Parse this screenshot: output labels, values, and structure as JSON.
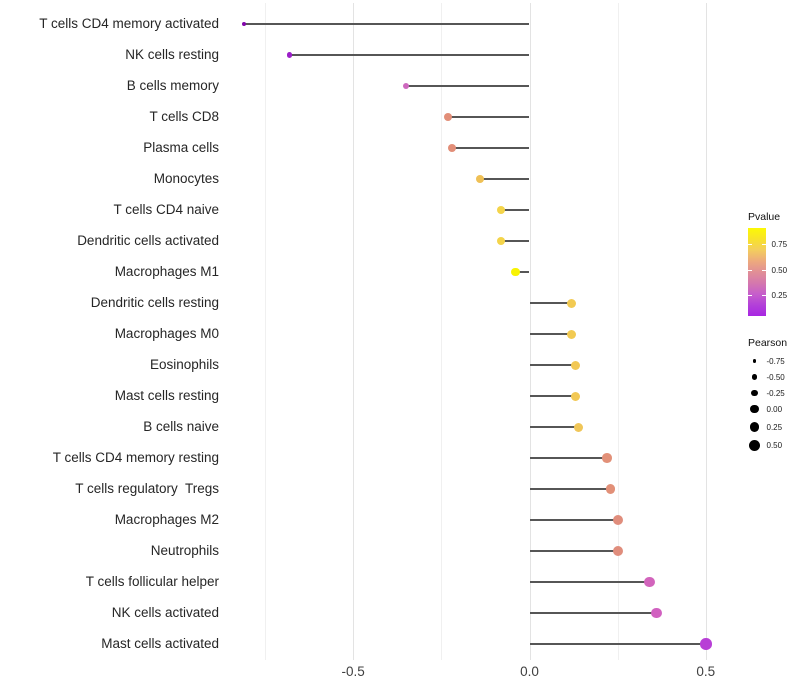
{
  "chart_data": {
    "type": "scatter",
    "variant": "lollipop",
    "title": "",
    "xlabel": "",
    "ylabel": "",
    "xlim": [
      -0.88,
      0.57
    ],
    "x_ticks": [
      "-0.5",
      "0.0",
      "0.5"
    ],
    "x_tick_values": [
      -0.5,
      0.0,
      0.5
    ],
    "grid_x_values": [
      -0.75,
      -0.5,
      -0.25,
      0.0,
      0.25,
      0.5
    ],
    "grid": "vertical-only",
    "legend_position": "right",
    "stick_color": "#565656",
    "points": [
      {
        "label": "T cells CD4 memory activated",
        "pearson": -0.81,
        "color": "#8207aa",
        "size": 4.0
      },
      {
        "label": "NK cells resting",
        "pearson": -0.68,
        "color": "#9c1fc8",
        "size": 5.5
      },
      {
        "label": "B cells memory",
        "pearson": -0.35,
        "color": "#cd68be",
        "size": 6.8
      },
      {
        "label": "T cells CD8",
        "pearson": -0.23,
        "color": "#e28e78",
        "size": 8.0
      },
      {
        "label": "Plasma cells",
        "pearson": -0.22,
        "color": "#e28e78",
        "size": 8.0
      },
      {
        "label": "Monocytes",
        "pearson": -0.14,
        "color": "#efc055",
        "size": 8.4
      },
      {
        "label": "T cells CD4 naive",
        "pearson": -0.08,
        "color": "#f4d44a",
        "size": 8.4
      },
      {
        "label": "Dendritic cells activated",
        "pearson": -0.08,
        "color": "#f4d44a",
        "size": 8.4
      },
      {
        "label": "Macrophages M1",
        "pearson": -0.04,
        "color": "#f8f303",
        "size": 8.6
      },
      {
        "label": "Dendritic cells resting",
        "pearson": 0.12,
        "color": "#f2ca52",
        "size": 9.0
      },
      {
        "label": "Macrophages M0",
        "pearson": 0.12,
        "color": "#f2ca52",
        "size": 9.0
      },
      {
        "label": "Eosinophils",
        "pearson": 0.13,
        "color": "#f2c854",
        "size": 9.0
      },
      {
        "label": "Mast cells resting",
        "pearson": 0.13,
        "color": "#f2c854",
        "size": 9.0
      },
      {
        "label": "B cells naive",
        "pearson": 0.14,
        "color": "#f0c658",
        "size": 9.0
      },
      {
        "label": "T cells CD4 memory resting",
        "pearson": 0.22,
        "color": "#e29078",
        "size": 9.6
      },
      {
        "label": "T cells regulatory  Tregs",
        "pearson": 0.23,
        "color": "#e29078",
        "size": 9.6
      },
      {
        "label": "Macrophages M2",
        "pearson": 0.25,
        "color": "#e08d7c",
        "size": 10.0
      },
      {
        "label": "Neutrophils",
        "pearson": 0.25,
        "color": "#e08d7c",
        "size": 10.0
      },
      {
        "label": "T cells follicular helper",
        "pearson": 0.34,
        "color": "#d264bc",
        "size": 10.4
      },
      {
        "label": "NK cells activated",
        "pearson": 0.36,
        "color": "#d161c0",
        "size": 10.6
      },
      {
        "label": "Mast cells activated",
        "pearson": 0.5,
        "color": "#b83fd6",
        "size": 11.6
      }
    ]
  },
  "legends": {
    "pvalue": {
      "title": "Pvalue",
      "tick_labels": [
        "0.75",
        "0.50",
        "0.25"
      ],
      "gradient_top_to_bottom": [
        "#fcf905",
        "#f8e22b",
        "#f3cd5e",
        "#eda97e",
        "#e18f96",
        "#d477ae",
        "#c65ecb",
        "#b23fd9",
        "#a826e2"
      ]
    },
    "pearson": {
      "title": "Pearson",
      "items": [
        {
          "label": "-0.75",
          "size": 3.4
        },
        {
          "label": "-0.50",
          "size": 5.3
        },
        {
          "label": "-0.25",
          "size": 6.7
        },
        {
          "label": "0.00",
          "size": 8.3
        },
        {
          "label": "0.25",
          "size": 9.7
        },
        {
          "label": "0.50",
          "size": 11.0
        }
      ],
      "dot_color": "#000000"
    }
  }
}
